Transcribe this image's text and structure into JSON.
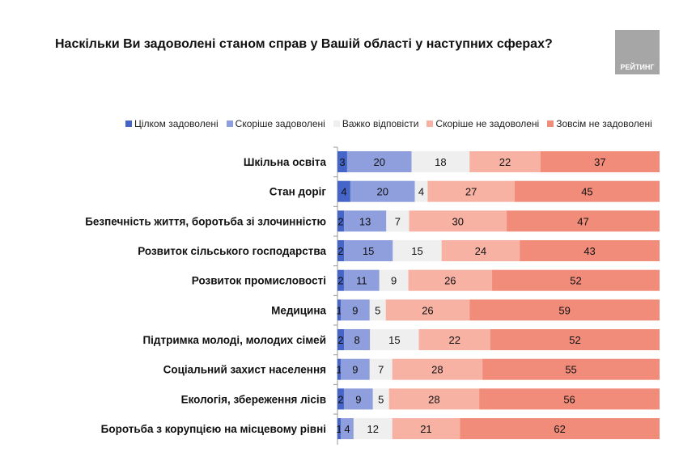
{
  "chart_data": {
    "type": "bar",
    "orientation": "horizontal",
    "stacked": true,
    "title": "Наскільки Ви задоволені станом справ у Вашій області у наступних сферах?",
    "legend_position": "top",
    "grid": false,
    "categories": [
      "Шкільна освіта",
      "Стан доріг",
      "Безпечність життя, боротьба зі злочинністю",
      "Розвиток сільського господарства",
      "Розвиток промисловості",
      "Медицина",
      "Підтримка молоді, молодих сімей",
      "Соціальний захист населення",
      "Екологія, збереження лісів",
      "Боротьба з корупцією на місцевому рівні"
    ],
    "series": [
      {
        "name": "Цілком задоволені",
        "color": "#4565c8",
        "values": [
          3,
          4,
          2,
          2,
          2,
          1,
          2,
          1,
          2,
          1
        ]
      },
      {
        "name": "Скоріше задоволені",
        "color": "#8f9fdd",
        "values": [
          20,
          20,
          13,
          15,
          11,
          9,
          8,
          9,
          9,
          4
        ]
      },
      {
        "name": "Важко відповісти",
        "color": "#efefef",
        "values": [
          18,
          4,
          7,
          15,
          9,
          5,
          15,
          7,
          5,
          12
        ]
      },
      {
        "name": "Скоріше не задоволені",
        "color": "#f7b2a3",
        "values": [
          22,
          27,
          30,
          24,
          26,
          26,
          22,
          28,
          28,
          21
        ]
      },
      {
        "name": "Зовсім не задоволені",
        "color": "#f28c7a",
        "values": [
          37,
          45,
          47,
          43,
          52,
          59,
          52,
          55,
          56,
          62
        ]
      }
    ]
  },
  "logo": {
    "text": "РЕЙТИНГ"
  }
}
